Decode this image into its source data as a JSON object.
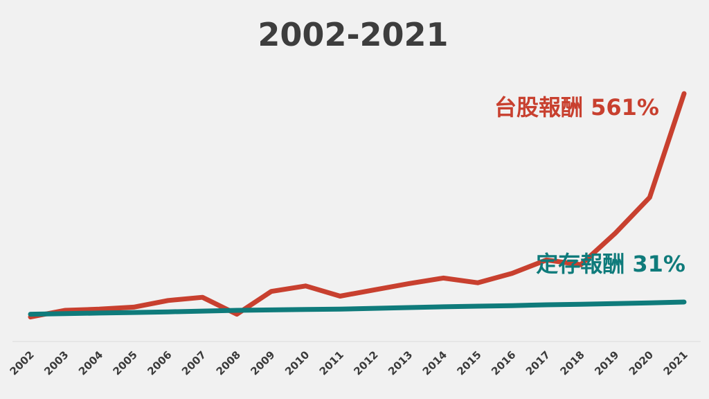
{
  "chart_data": {
    "type": "line",
    "title": "2002-2021",
    "xlabel": "",
    "ylabel": "",
    "grid": false,
    "categories": [
      "2002",
      "2003",
      "2004",
      "2005",
      "2006",
      "2007",
      "2008",
      "2009",
      "2010",
      "2011",
      "2012",
      "2013",
      "2014",
      "2015",
      "2016",
      "2017",
      "2018",
      "2019",
      "2020",
      "2021"
    ],
    "ylim": [
      -20,
      600
    ],
    "series": [
      {
        "name": "台股報酬 561%",
        "color": "#c8402f",
        "values": [
          -7,
          10,
          13,
          18,
          35,
          43,
          0,
          58,
          72,
          46,
          62,
          78,
          92,
          80,
          104,
          138,
          126,
          206,
          297,
          561
        ]
      },
      {
        "name": "定存報酬 31%",
        "color": "#0f7b7b",
        "values": [
          0,
          1.5,
          3,
          4.5,
          6,
          8,
          10,
          11,
          12,
          13,
          15,
          17,
          19,
          20.5,
          22,
          24,
          25.5,
          27,
          29,
          31
        ]
      }
    ]
  }
}
